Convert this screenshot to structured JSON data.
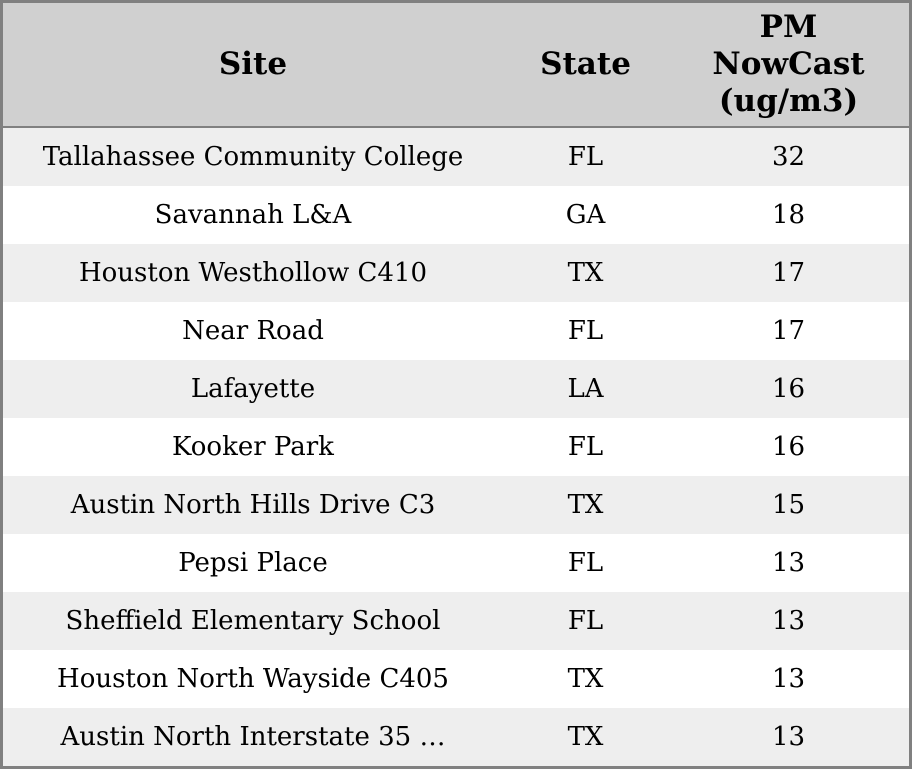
{
  "colors": {
    "outer_border": "#808080",
    "header_background": "#d0d0d0",
    "stripe_row_background": "#eeeeee",
    "plain_row_background": "#ffffff",
    "text": "#000000"
  },
  "table": {
    "columns": [
      {
        "key": "site",
        "label": "Site"
      },
      {
        "key": "state",
        "label": "State"
      },
      {
        "key": "pm_nowcast",
        "label": "PM\nNowCast\n(ug/m3)"
      }
    ],
    "rows": [
      {
        "site": "Tallahassee Community College",
        "state": "FL",
        "pm": "32"
      },
      {
        "site": "Savannah L&A",
        "state": "GA",
        "pm": "18"
      },
      {
        "site": "Houston Westhollow C410",
        "state": "TX",
        "pm": "17"
      },
      {
        "site": "Near Road",
        "state": "FL",
        "pm": "17"
      },
      {
        "site": "Lafayette",
        "state": "LA",
        "pm": "16"
      },
      {
        "site": "Kooker Park",
        "state": "FL",
        "pm": "16"
      },
      {
        "site": "Austin North Hills Drive C3",
        "state": "TX",
        "pm": "15"
      },
      {
        "site": "Pepsi Place",
        "state": "FL",
        "pm": "13"
      },
      {
        "site": "Sheffield Elementary School",
        "state": "FL",
        "pm": "13"
      },
      {
        "site": "Houston North Wayside C405",
        "state": "TX",
        "pm": "13"
      },
      {
        "site": "Austin North Interstate 35 …",
        "state": "TX",
        "pm": "13"
      }
    ]
  },
  "chart_data": {
    "type": "table",
    "title": "",
    "columns": [
      "Site",
      "State",
      "PM NowCast (ug/m3)"
    ],
    "categories": [
      "Tallahassee Community College",
      "Savannah L&A",
      "Houston Westhollow C410",
      "Near Road",
      "Lafayette",
      "Kooker Park",
      "Austin North Hills Drive C3",
      "Pepsi Place",
      "Sheffield Elementary School",
      "Houston North Wayside C405",
      "Austin North Interstate 35 …"
    ],
    "states": [
      "FL",
      "GA",
      "TX",
      "FL",
      "LA",
      "FL",
      "TX",
      "FL",
      "FL",
      "TX",
      "TX"
    ],
    "values": [
      32,
      18,
      17,
      17,
      16,
      16,
      15,
      13,
      13,
      13,
      13
    ],
    "value_label": "PM NowCast (ug/m3)"
  }
}
